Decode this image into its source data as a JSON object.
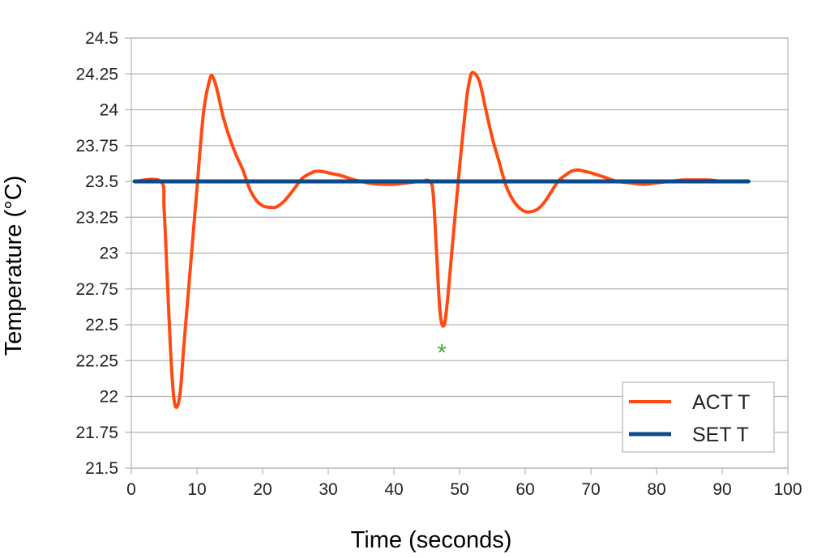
{
  "chart_data": {
    "type": "line",
    "xlabel": "Time (seconds)",
    "ylabel": "Temperature (°C)",
    "xlim": [
      0,
      100
    ],
    "ylim": [
      21.5,
      24.5
    ],
    "x_ticks": [
      0,
      10,
      20,
      30,
      40,
      50,
      60,
      70,
      80,
      90,
      100
    ],
    "x_tick_labels": [
      "0",
      "10",
      "20",
      "30",
      "40",
      "50",
      "60",
      "70",
      "80",
      "90",
      "100"
    ],
    "y_ticks": [
      21.5,
      21.75,
      22,
      22.25,
      22.5,
      22.75,
      23,
      23.25,
      23.5,
      23.75,
      24,
      24.25,
      24.5
    ],
    "y_tick_labels": [
      "21.5",
      "21.75",
      "22",
      "22.25",
      "22.5",
      "22.75",
      "23",
      "23.25",
      "23.5",
      "23.75",
      "24",
      "24.25",
      "24.5"
    ],
    "grid": true,
    "legend_position": "bottom-right",
    "series": [
      {
        "name": "ACT T",
        "color": "#ff4a12",
        "x": [
          0.5,
          4.5,
          5.0,
          5.5,
          6.0,
          6.5,
          7.0,
          7.5,
          8.0,
          9.0,
          10.0,
          11.0,
          12.0,
          12.5,
          13.0,
          14.0,
          15.0,
          16.0,
          17.0,
          18.0,
          19.0,
          20.0,
          21.0,
          22.0,
          23.0,
          24.0,
          25.0,
          26.0,
          27.0,
          28.0,
          29.0,
          30.0,
          31.0,
          32.0,
          34.0,
          36.0,
          38.0,
          40.0,
          42.0,
          44.0,
          45.5,
          46.0,
          46.5,
          47.0,
          47.5,
          48.0,
          49.0,
          50.0,
          51.0,
          51.5,
          52.0,
          53.0,
          54.0,
          55.0,
          56.0,
          57.0,
          58.0,
          59.0,
          60.0,
          61.0,
          62.0,
          63.0,
          64.0,
          65.0,
          66.0,
          67.0,
          68.0,
          69.0,
          70.0,
          72.0,
          74.0,
          76.0,
          78.0,
          80.0,
          82.0,
          84.0,
          86.0,
          88.0,
          90.0,
          92.0,
          94.0
        ],
        "values": [
          23.5,
          23.5,
          23.3,
          22.8,
          22.3,
          21.98,
          21.93,
          22.05,
          22.35,
          22.9,
          23.45,
          23.98,
          24.22,
          24.22,
          24.15,
          23.95,
          23.8,
          23.68,
          23.58,
          23.45,
          23.37,
          23.33,
          23.32,
          23.32,
          23.35,
          23.4,
          23.46,
          23.52,
          23.55,
          23.57,
          23.57,
          23.56,
          23.55,
          23.54,
          23.51,
          23.49,
          23.48,
          23.48,
          23.49,
          23.5,
          23.5,
          23.4,
          23.0,
          22.6,
          22.49,
          22.6,
          23.1,
          23.6,
          24.05,
          24.2,
          24.26,
          24.2,
          24.0,
          23.8,
          23.64,
          23.48,
          23.38,
          23.32,
          23.29,
          23.29,
          23.31,
          23.36,
          23.43,
          23.5,
          23.54,
          23.57,
          23.58,
          23.57,
          23.56,
          23.53,
          23.5,
          23.49,
          23.48,
          23.49,
          23.5,
          23.51,
          23.51,
          23.51,
          23.5,
          23.5,
          23.5
        ]
      },
      {
        "name": "SET T",
        "color": "#0d4a8a",
        "x": [
          0.5,
          94.0
        ],
        "values": [
          23.5,
          23.5
        ]
      }
    ],
    "annotations": [
      {
        "text": "*",
        "x": 47.3,
        "y": 22.34,
        "color": "#4caf3c"
      }
    ]
  }
}
